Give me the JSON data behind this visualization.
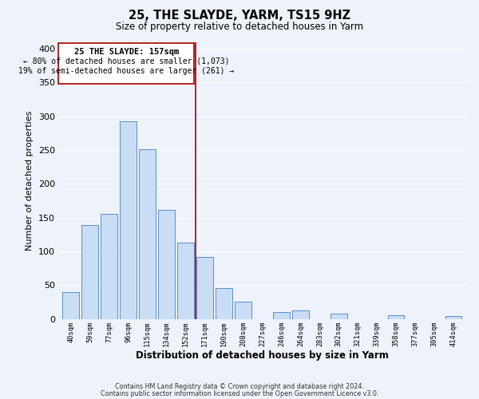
{
  "title": "25, THE SLAYDE, YARM, TS15 9HZ",
  "subtitle": "Size of property relative to detached houses in Yarm",
  "xlabel": "Distribution of detached houses by size in Yarm",
  "ylabel": "Number of detached properties",
  "footer_line1": "Contains HM Land Registry data © Crown copyright and database right 2024.",
  "footer_line2": "Contains public sector information licensed under the Open Government Licence v3.0.",
  "bin_labels": [
    "40sqm",
    "59sqm",
    "77sqm",
    "96sqm",
    "115sqm",
    "134sqm",
    "152sqm",
    "171sqm",
    "190sqm",
    "208sqm",
    "227sqm",
    "246sqm",
    "264sqm",
    "283sqm",
    "302sqm",
    "321sqm",
    "339sqm",
    "358sqm",
    "377sqm",
    "395sqm",
    "414sqm"
  ],
  "bar_values": [
    40,
    139,
    155,
    292,
    251,
    161,
    113,
    92,
    46,
    25,
    0,
    10,
    13,
    0,
    8,
    0,
    0,
    5,
    0,
    0,
    4
  ],
  "bar_color": "#c9ddf5",
  "bar_edge_color": "#5b8fcc",
  "property_line_label": "25 THE SLAYDE: 157sqm",
  "annotation_smaller": "← 80% of detached houses are smaller (1,073)",
  "annotation_larger": "19% of semi-detached houses are larger (261) →",
  "vline_color": "#aa0000",
  "box_edge_color": "#aa0000",
  "ylim": [
    0,
    410
  ],
  "yticks": [
    0,
    50,
    100,
    150,
    200,
    250,
    300,
    350,
    400
  ],
  "background_color": "#eef2fa",
  "grid_color": "#ffffff"
}
